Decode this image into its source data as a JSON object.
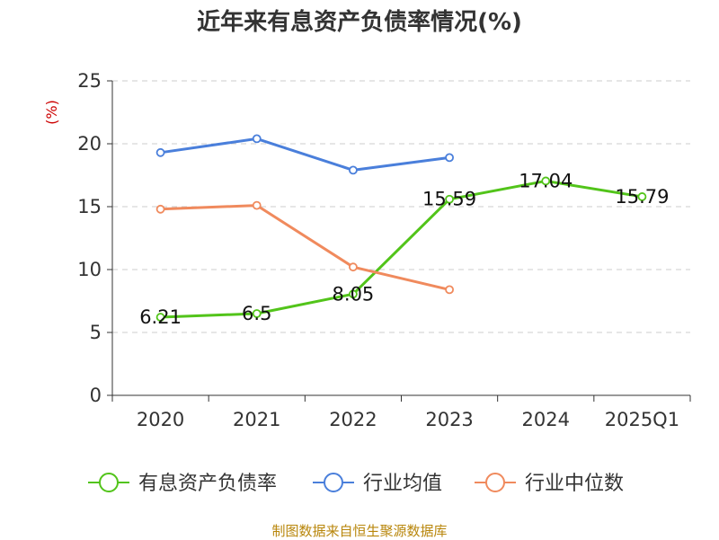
{
  "chart_data": {
    "type": "line",
    "title": "近年来有息资产负债率情况(%)",
    "unit_label": "(%)",
    "categories": [
      "2020",
      "2021",
      "2022",
      "2023",
      "2024",
      "2025Q1"
    ],
    "ylim": [
      0,
      25
    ],
    "yticks": [
      0,
      5,
      10,
      15,
      20,
      25
    ],
    "grid": true,
    "legend_position": "bottom",
    "series": [
      {
        "name": "有息资产负债率",
        "color": "#52c41a",
        "values": [
          6.21,
          6.5,
          8.05,
          15.59,
          17.04,
          15.79
        ],
        "labels": [
          "6.21",
          "6.5",
          "8.05",
          "15.59",
          "17.04",
          "15.79"
        ]
      },
      {
        "name": "行业均值",
        "color": "#4a7fdb",
        "values": [
          19.3,
          20.4,
          17.9,
          18.9,
          null,
          null
        ]
      },
      {
        "name": "行业中位数",
        "color": "#f08a5d",
        "values": [
          14.8,
          15.1,
          10.2,
          8.4,
          null,
          null
        ]
      }
    ]
  },
  "footer": "制图数据来自恒生聚源数据库"
}
